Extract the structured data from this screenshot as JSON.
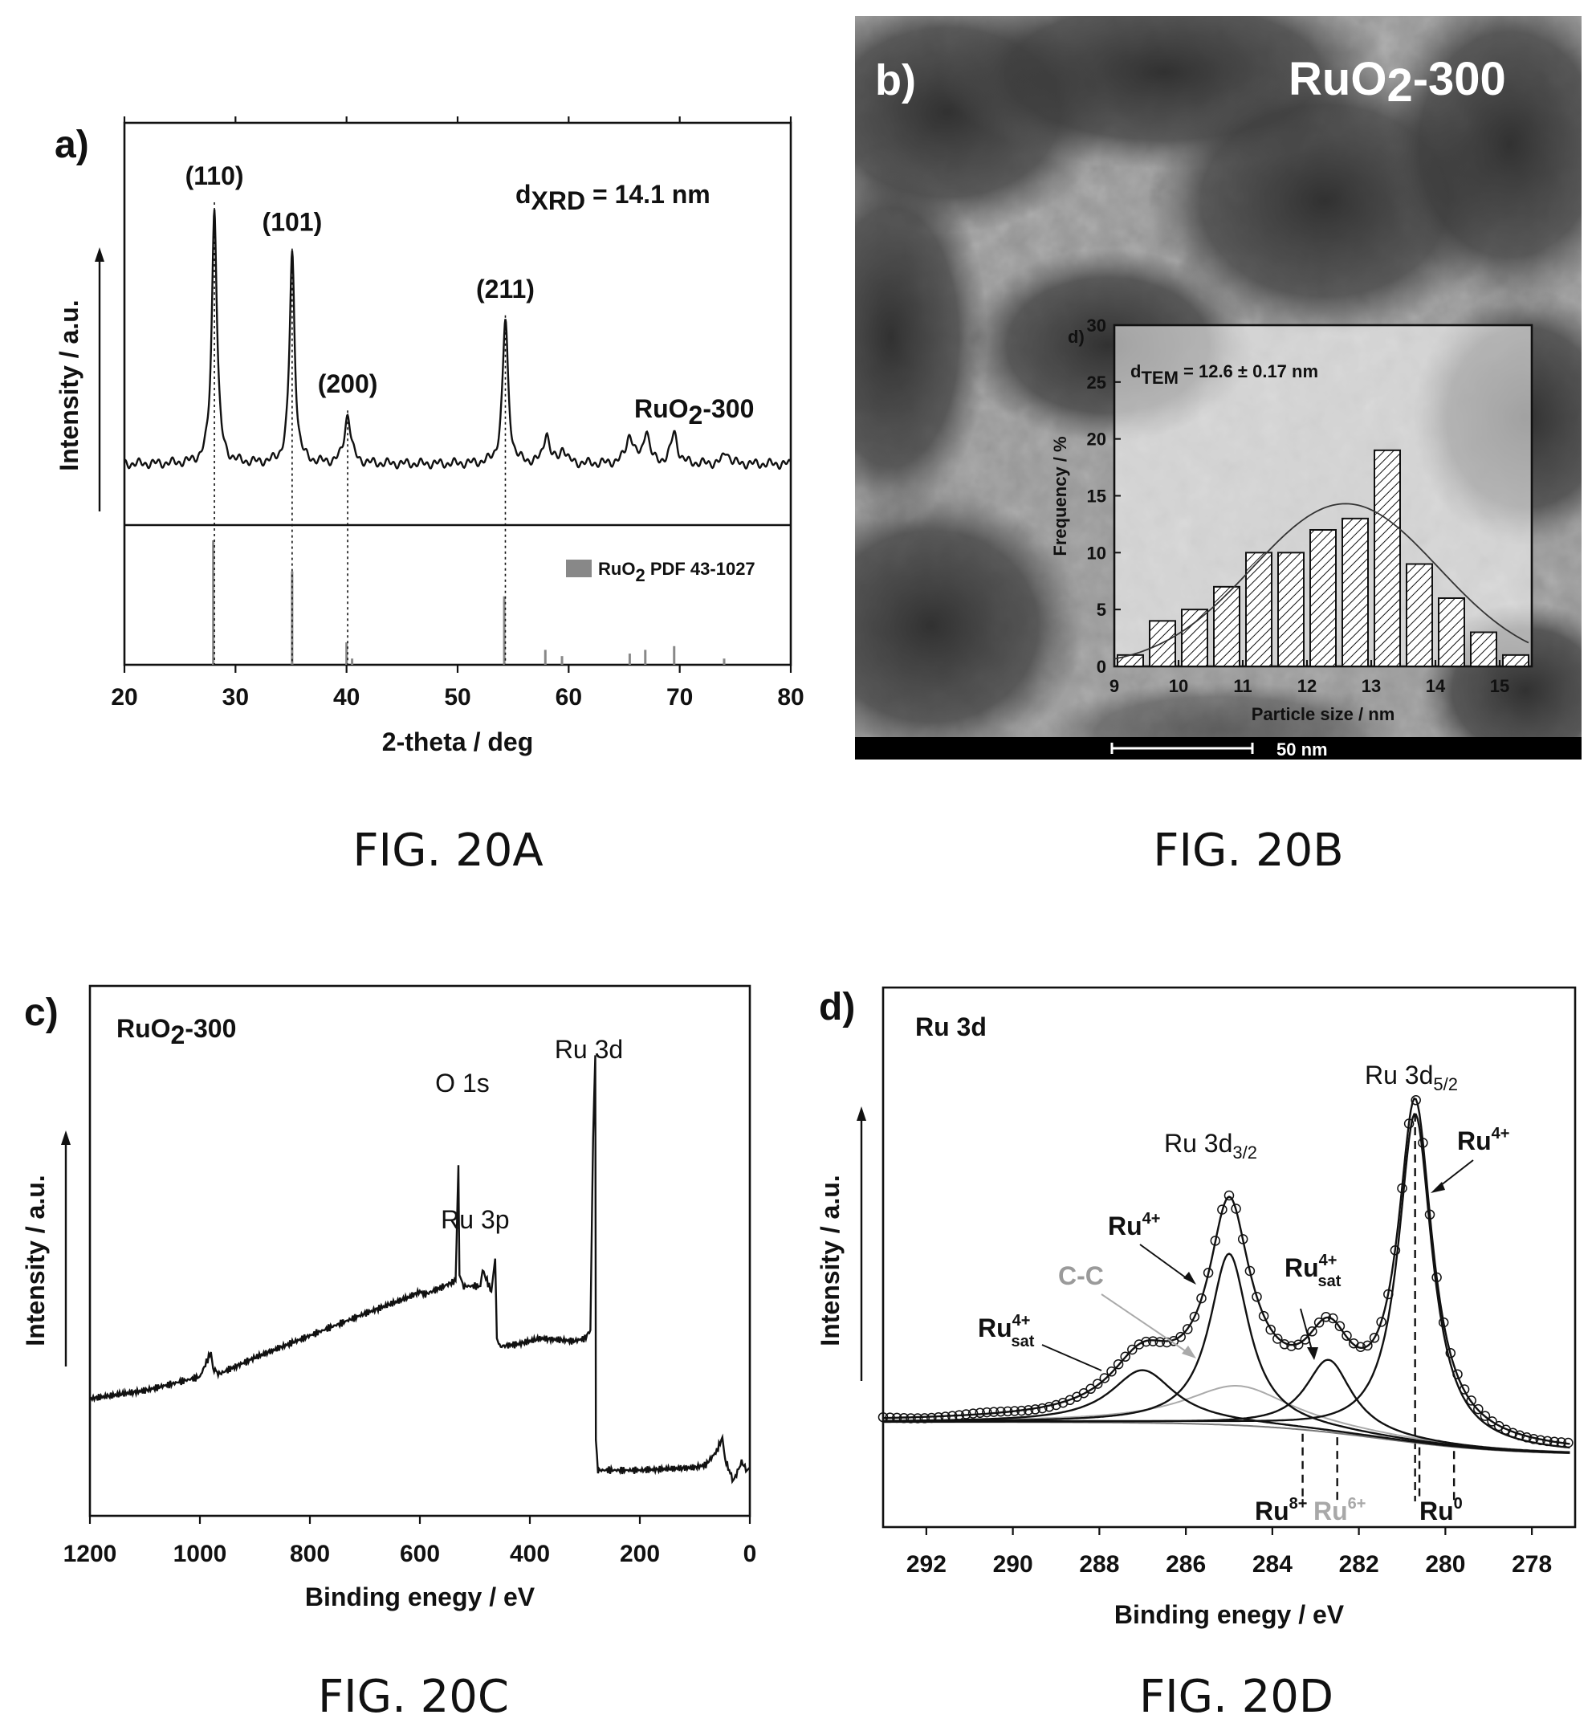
{
  "chart_data": [
    {
      "id": "a",
      "type": "line",
      "panel_label": "a)",
      "caption": "FIG. 20A",
      "xlabel": "2-theta / deg",
      "ylabel": "Intensity / a.u.",
      "xlim": [
        20,
        80
      ],
      "xticks": [
        20,
        30,
        40,
        50,
        60,
        70,
        80
      ],
      "sample_label": "RuO2-300",
      "annotation": "d_XRD = 14.1 nm",
      "peaks": [
        {
          "x": 28.1,
          "label": "(110)",
          "height": 1.0,
          "width": 0.55
        },
        {
          "x": 35.1,
          "label": "(101)",
          "height": 0.82,
          "width": 0.55
        },
        {
          "x": 40.1,
          "label": "(200)",
          "height": 0.19,
          "width": 0.7
        },
        {
          "x": 54.3,
          "label": "(211)",
          "height": 0.56,
          "width": 0.6
        },
        {
          "x": 58.0,
          "label": "",
          "height": 0.12,
          "width": 0.6
        },
        {
          "x": 59.5,
          "label": "",
          "height": 0.06,
          "width": 0.6
        },
        {
          "x": 65.5,
          "label": "",
          "height": 0.11,
          "width": 0.8
        },
        {
          "x": 67.0,
          "label": "",
          "height": 0.13,
          "width": 0.6
        },
        {
          "x": 69.5,
          "label": "",
          "height": 0.12,
          "width": 0.7
        },
        {
          "x": 74.2,
          "label": "",
          "height": 0.05,
          "width": 0.6
        }
      ],
      "reference": {
        "name": "RuO2 PDF 43-1027",
        "lines": [
          {
            "x": 28.0,
            "rel": 1.0
          },
          {
            "x": 35.1,
            "rel": 0.75
          },
          {
            "x": 40.0,
            "rel": 0.18
          },
          {
            "x": 40.5,
            "rel": 0.05
          },
          {
            "x": 54.2,
            "rel": 0.55
          },
          {
            "x": 57.9,
            "rel": 0.12
          },
          {
            "x": 59.4,
            "rel": 0.07
          },
          {
            "x": 65.5,
            "rel": 0.09
          },
          {
            "x": 66.9,
            "rel": 0.12
          },
          {
            "x": 69.5,
            "rel": 0.15
          },
          {
            "x": 74.0,
            "rel": 0.05
          }
        ]
      }
    },
    {
      "id": "b",
      "type": "bar",
      "panel_label": "b)",
      "caption": "FIG. 20B",
      "image_label": "RuO2-300",
      "scale_bar": "50 nm",
      "inset": {
        "panel_label": "d)",
        "annotation": "d_TEM = 12.6 ± 0.17 nm",
        "xlabel": "Particle size / nm",
        "ylabel": "Frequency / %",
        "xlim": [
          9,
          15.5
        ],
        "ylim": [
          0,
          30
        ],
        "xticks": [
          9,
          10,
          11,
          12,
          13,
          14,
          15
        ],
        "yticks": [
          0,
          5,
          10,
          15,
          20,
          25,
          30
        ],
        "bin_width": 0.5,
        "bins": [
          9.0,
          9.5,
          10.0,
          10.5,
          11.0,
          11.5,
          12.0,
          12.5,
          13.0,
          13.5,
          14.0,
          14.5,
          15.0
        ],
        "values": [
          1,
          4,
          5,
          7,
          10,
          10,
          12,
          13,
          19,
          9,
          6,
          3,
          1
        ],
        "fit": {
          "mean": 12.6,
          "sigma": 1.45,
          "peak": 14.3
        }
      }
    },
    {
      "id": "c",
      "type": "line",
      "panel_label": "c)",
      "caption": "FIG. 20C",
      "xlabel": "Binding enegy / eV",
      "ylabel": "Intensity / a.u.",
      "xlim": [
        1200,
        0
      ],
      "xticks": [
        1200,
        1000,
        800,
        600,
        400,
        200,
        0
      ],
      "sample_label": "RuO2-300",
      "peak_labels": [
        {
          "x": 530,
          "text": "O 1s"
        },
        {
          "x": 463,
          "text": "Ru 3p"
        },
        {
          "x": 281,
          "text": "Ru 3d"
        }
      ],
      "series": [
        {
          "x": [
            1200,
            1100,
            1000,
            980,
            976,
            965,
            900,
            800,
            700,
            620,
            600,
            590,
            545,
            535,
            530,
            528,
            520,
            490,
            486,
            470,
            463,
            460,
            455,
            420,
            380,
            320,
            300,
            290,
            285,
            281,
            280,
            276,
            200,
            100,
            80,
            60,
            50,
            45,
            30,
            15,
            5,
            0
          ],
          "y": [
            0.35,
            0.38,
            0.43,
            0.52,
            0.46,
            0.44,
            0.5,
            0.58,
            0.66,
            0.72,
            0.74,
            0.73,
            0.77,
            0.78,
            1.2,
            0.8,
            0.76,
            0.76,
            0.82,
            0.74,
            0.86,
            0.57,
            0.54,
            0.55,
            0.57,
            0.56,
            0.57,
            0.6,
            1.3,
            1.6,
            0.2,
            0.09,
            0.09,
            0.1,
            0.11,
            0.16,
            0.21,
            0.13,
            0.05,
            0.12,
            0.09,
            0.1
          ]
        }
      ]
    },
    {
      "id": "d",
      "type": "line",
      "panel_label": "d)",
      "caption": "FIG. 20D",
      "xlabel": "Binding enegy / eV",
      "ylabel": "Intensity / a.u.",
      "xlim": [
        293,
        277
      ],
      "xticks": [
        292,
        290,
        288,
        286,
        284,
        282,
        280,
        278
      ],
      "region_label": "Ru 3d",
      "peak_labels": [
        "Ru 3d5/2",
        "Ru 3d3/2"
      ],
      "components": [
        {
          "name": "Ru4+ 3d5/2",
          "center": 280.7,
          "fwhm": 0.95,
          "height": 1.0
        },
        {
          "name": "Ru4+ 3d3/2",
          "center": 285.0,
          "fwhm": 1.1,
          "height": 0.52
        },
        {
          "name": "Ru4+ sat (3d5/2)",
          "center": 282.7,
          "fwhm": 1.3,
          "height": 0.22
        },
        {
          "name": "Ru4+ sat (3d3/2)",
          "center": 287.0,
          "fwhm": 1.8,
          "height": 0.16
        },
        {
          "name": "C-C",
          "center": 284.8,
          "fwhm": 3.0,
          "height": 0.12
        }
      ],
      "state_lines": [
        {
          "label": "Ru8+",
          "x": 283.3
        },
        {
          "label": "Ru6+",
          "x": 282.5
        },
        {
          "label": "Ru0",
          "x": 279.8
        },
        {
          "label": "",
          "x": 280.6
        }
      ],
      "annotations": [
        "Ru4+",
        "Ru4+",
        "Ru4+ sat",
        "Ru4+ sat",
        "C-C"
      ]
    }
  ],
  "colors": {
    "axis": "#111111",
    "reference": "#888888",
    "cc_label": "#9a9a9a",
    "ru6_label": "#a8a8a8"
  }
}
